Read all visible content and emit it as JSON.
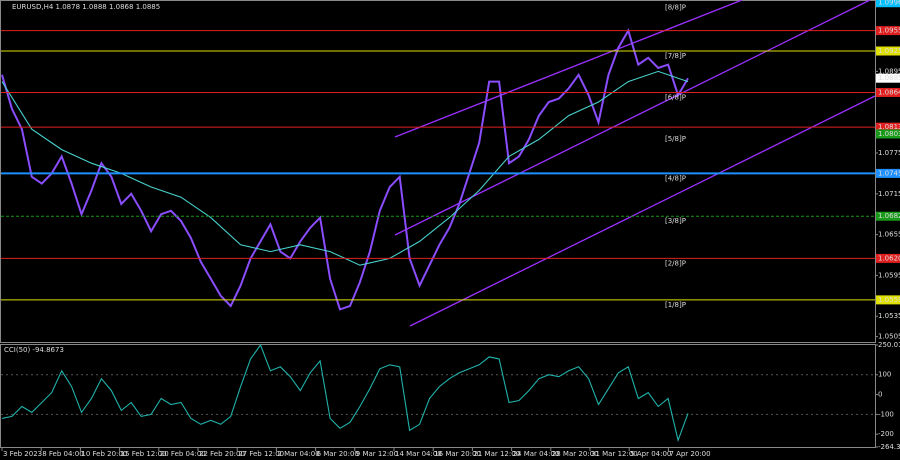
{
  "chart_data": [
    {
      "type": "line",
      "title": "EURUSD,H4  1.0878 1.0888 1.0868 1.0885",
      "x_labels": [
        "3 Feb 2023",
        "8 Feb 04:00",
        "10 Feb 20:00",
        "15 Feb 12:00",
        "20 Feb 04:00",
        "22 Feb 20:00",
        "27 Feb 12:00",
        "2 Mar 04:00",
        "6 Mar 20:00",
        "9 Mar 12:00",
        "14 Mar 04:00",
        "16 Mar 20:00",
        "21 Mar 12:00",
        "24 Mar 04:00",
        "28 Mar 20:00",
        "31 Mar 12:00",
        "5 Apr 04:00",
        "7 Apr 20:00"
      ],
      "ylim": [
        1.05,
        1.1
      ],
      "yticks": [
        1.0505,
        1.0535,
        1.0595,
        1.0655,
        1.0715,
        1.0775,
        1.0895
      ],
      "series": [
        {
          "color": "#8a4dff",
          "values": [
            1.089,
            1.084,
            1.081,
            1.074,
            1.073,
            1.0745,
            1.077,
            1.073,
            1.0685,
            1.072,
            1.076,
            1.074,
            1.07,
            1.0715,
            1.069,
            1.066,
            1.0685,
            1.069,
            1.0675,
            1.065,
            1.0615,
            1.059,
            1.0565,
            1.055,
            1.058,
            1.062,
            1.0645,
            1.067,
            1.063,
            1.062,
            1.0645,
            1.0665,
            1.068,
            1.059,
            1.0545,
            1.055,
            1.0585,
            1.063,
            1.069,
            1.0725,
            1.074,
            1.062,
            1.058,
            1.061,
            1.064,
            1.0665,
            1.07,
            1.0745,
            1.079,
            1.088,
            1.088,
            1.076,
            1.077,
            1.0795,
            1.083,
            1.085,
            1.0855,
            1.087,
            1.089,
            1.086,
            1.082,
            1.089,
            1.093,
            1.0955,
            1.0905,
            1.0915,
            1.09,
            1.0905,
            1.086,
            1.0885
          ]
        },
        {
          "color": "#48d1cc",
          "values": [
            1.088,
            1.081,
            1.078,
            1.076,
            1.0745,
            1.0725,
            1.071,
            1.068,
            1.064,
            1.063,
            1.064,
            1.063,
            1.061,
            1.062,
            1.0645,
            1.068,
            1.072,
            1.077,
            1.0795,
            1.083,
            1.085,
            1.088,
            1.0895,
            1.088
          ]
        }
      ],
      "last_price": {
        "value": 1.0885,
        "label": "1.0885"
      },
      "levels": [
        {
          "value": 1.0996,
          "label": "1.0996",
          "color": "#00bfff",
          "tag": "[8/8]P",
          "line": false
        },
        {
          "value": 1.0955,
          "label": "1.0955",
          "color": "#e02020",
          "line": true
        },
        {
          "value": 1.0925,
          "label": "1.0925",
          "color": "#e0e000",
          "tag": "[7/8]P",
          "line": true
        },
        {
          "value": 1.0864,
          "label": "1.0864",
          "color": "#e02020",
          "tag": "[6/8]P",
          "line": true
        },
        {
          "value": 1.0813,
          "label": "1.0813",
          "color": "#e02020",
          "line": true
        },
        {
          "value": 1.0803,
          "label": "1.0803",
          "color": "#1a9a1a",
          "tag": "[5/8]P",
          "line": false
        },
        {
          "value": 1.0745,
          "label": "1.0745",
          "color": "#1e90ff",
          "tag": "[4/8]P",
          "line": true
        },
        {
          "value": 1.0682,
          "label": "1.0682",
          "color": "#1a9a1a",
          "tag": "[3/8]P",
          "line": true
        },
        {
          "value": 1.062,
          "label": "1.0620",
          "color": "#e02020",
          "tag": "[2/8]P",
          "line": true
        },
        {
          "value": 1.0559,
          "label": "1.0559",
          "color": "#e0e000",
          "tag": "[1/8]P",
          "line": true
        }
      ]
    },
    {
      "type": "line",
      "title": "CCI(50) -94.8673",
      "ylim": [
        -264.318,
        250.0114
      ],
      "yticks": [
        250.0114,
        100,
        0,
        -100,
        -200,
        -264.318
      ],
      "series": [
        {
          "color": "#20b2aa",
          "values": [
            -120,
            -110,
            -60,
            -90,
            -40,
            10,
            120,
            40,
            -90,
            -20,
            80,
            20,
            -80,
            -40,
            -110,
            -100,
            -20,
            -50,
            -40,
            -120,
            -150,
            -130,
            -150,
            -110,
            40,
            180,
            250,
            120,
            140,
            90,
            20,
            110,
            170,
            -120,
            -170,
            -140,
            -60,
            30,
            130,
            150,
            140,
            -180,
            -150,
            -20,
            40,
            80,
            110,
            130,
            150,
            190,
            180,
            -40,
            -30,
            20,
            80,
            100,
            90,
            120,
            140,
            80,
            -50,
            30,
            110,
            140,
            -20,
            10,
            -60,
            -20,
            -230,
            -94.8673
          ]
        }
      ]
    }
  ]
}
